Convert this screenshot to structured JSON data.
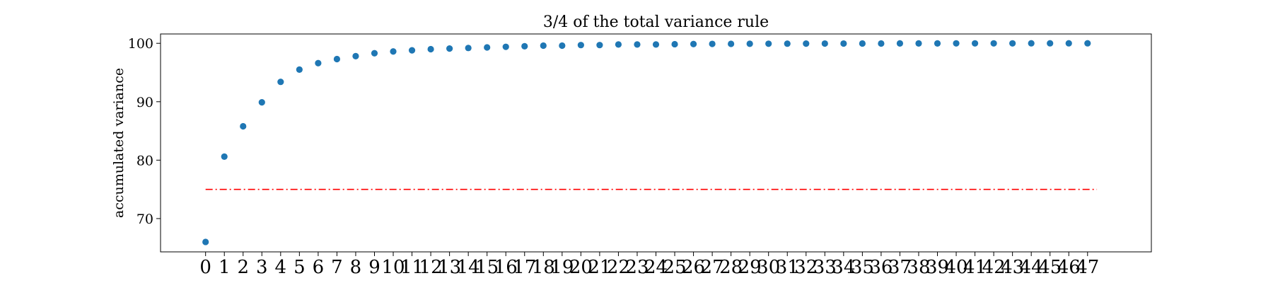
{
  "chart_data": {
    "type": "scatter",
    "title": "3/4 of the total variance rule",
    "xlabel": "",
    "ylabel": "accumulated variance",
    "x": [
      0,
      1,
      2,
      3,
      4,
      5,
      6,
      7,
      8,
      9,
      10,
      11,
      12,
      13,
      14,
      15,
      16,
      17,
      18,
      19,
      20,
      21,
      22,
      23,
      24,
      25,
      26,
      27,
      28,
      29,
      30,
      31,
      32,
      33,
      34,
      35,
      36,
      37,
      38,
      39,
      40,
      41,
      42,
      43,
      44,
      45,
      46,
      47
    ],
    "series": [
      {
        "values": [
          66.0,
          80.6,
          85.8,
          89.9,
          93.4,
          95.5,
          96.6,
          97.3,
          97.8,
          98.3,
          98.6,
          98.8,
          99.0,
          99.1,
          99.2,
          99.3,
          99.4,
          99.5,
          99.6,
          99.6,
          99.7,
          99.7,
          99.8,
          99.8,
          99.8,
          99.85,
          99.87,
          99.9,
          99.91,
          99.92,
          99.93,
          99.94,
          99.95,
          99.96,
          99.96,
          99.97,
          99.97,
          99.98,
          99.98,
          99.98,
          99.99,
          99.99,
          99.99,
          99.99,
          100.0,
          100.0,
          100.0,
          100.0
        ],
        "color": "#1f77b4",
        "marker": "circle"
      }
    ],
    "reference_line": {
      "y": 75,
      "x_range": [
        0,
        47.5
      ],
      "style": "dash-dot",
      "color": "#ff0000"
    },
    "xticks": [
      "0",
      "1",
      "2",
      "3",
      "4",
      "5",
      "6",
      "7",
      "8",
      "9",
      "10",
      "11",
      "12",
      "13",
      "14",
      "15",
      "16",
      "17",
      "18",
      "19",
      "20",
      "21",
      "22",
      "23",
      "24",
      "25",
      "26",
      "27",
      "28",
      "29",
      "30",
      "31",
      "32",
      "33",
      "34",
      "35",
      "36",
      "37",
      "38",
      "39",
      "40",
      "41",
      "42",
      "43",
      "44",
      "45",
      "46",
      "47"
    ],
    "yticks": [
      "70",
      "80",
      "90",
      "100"
    ],
    "xlim": [
      -2.4,
      50.4
    ],
    "ylim": [
      64.3,
      101.6
    ],
    "grid": false,
    "legend": "none"
  }
}
